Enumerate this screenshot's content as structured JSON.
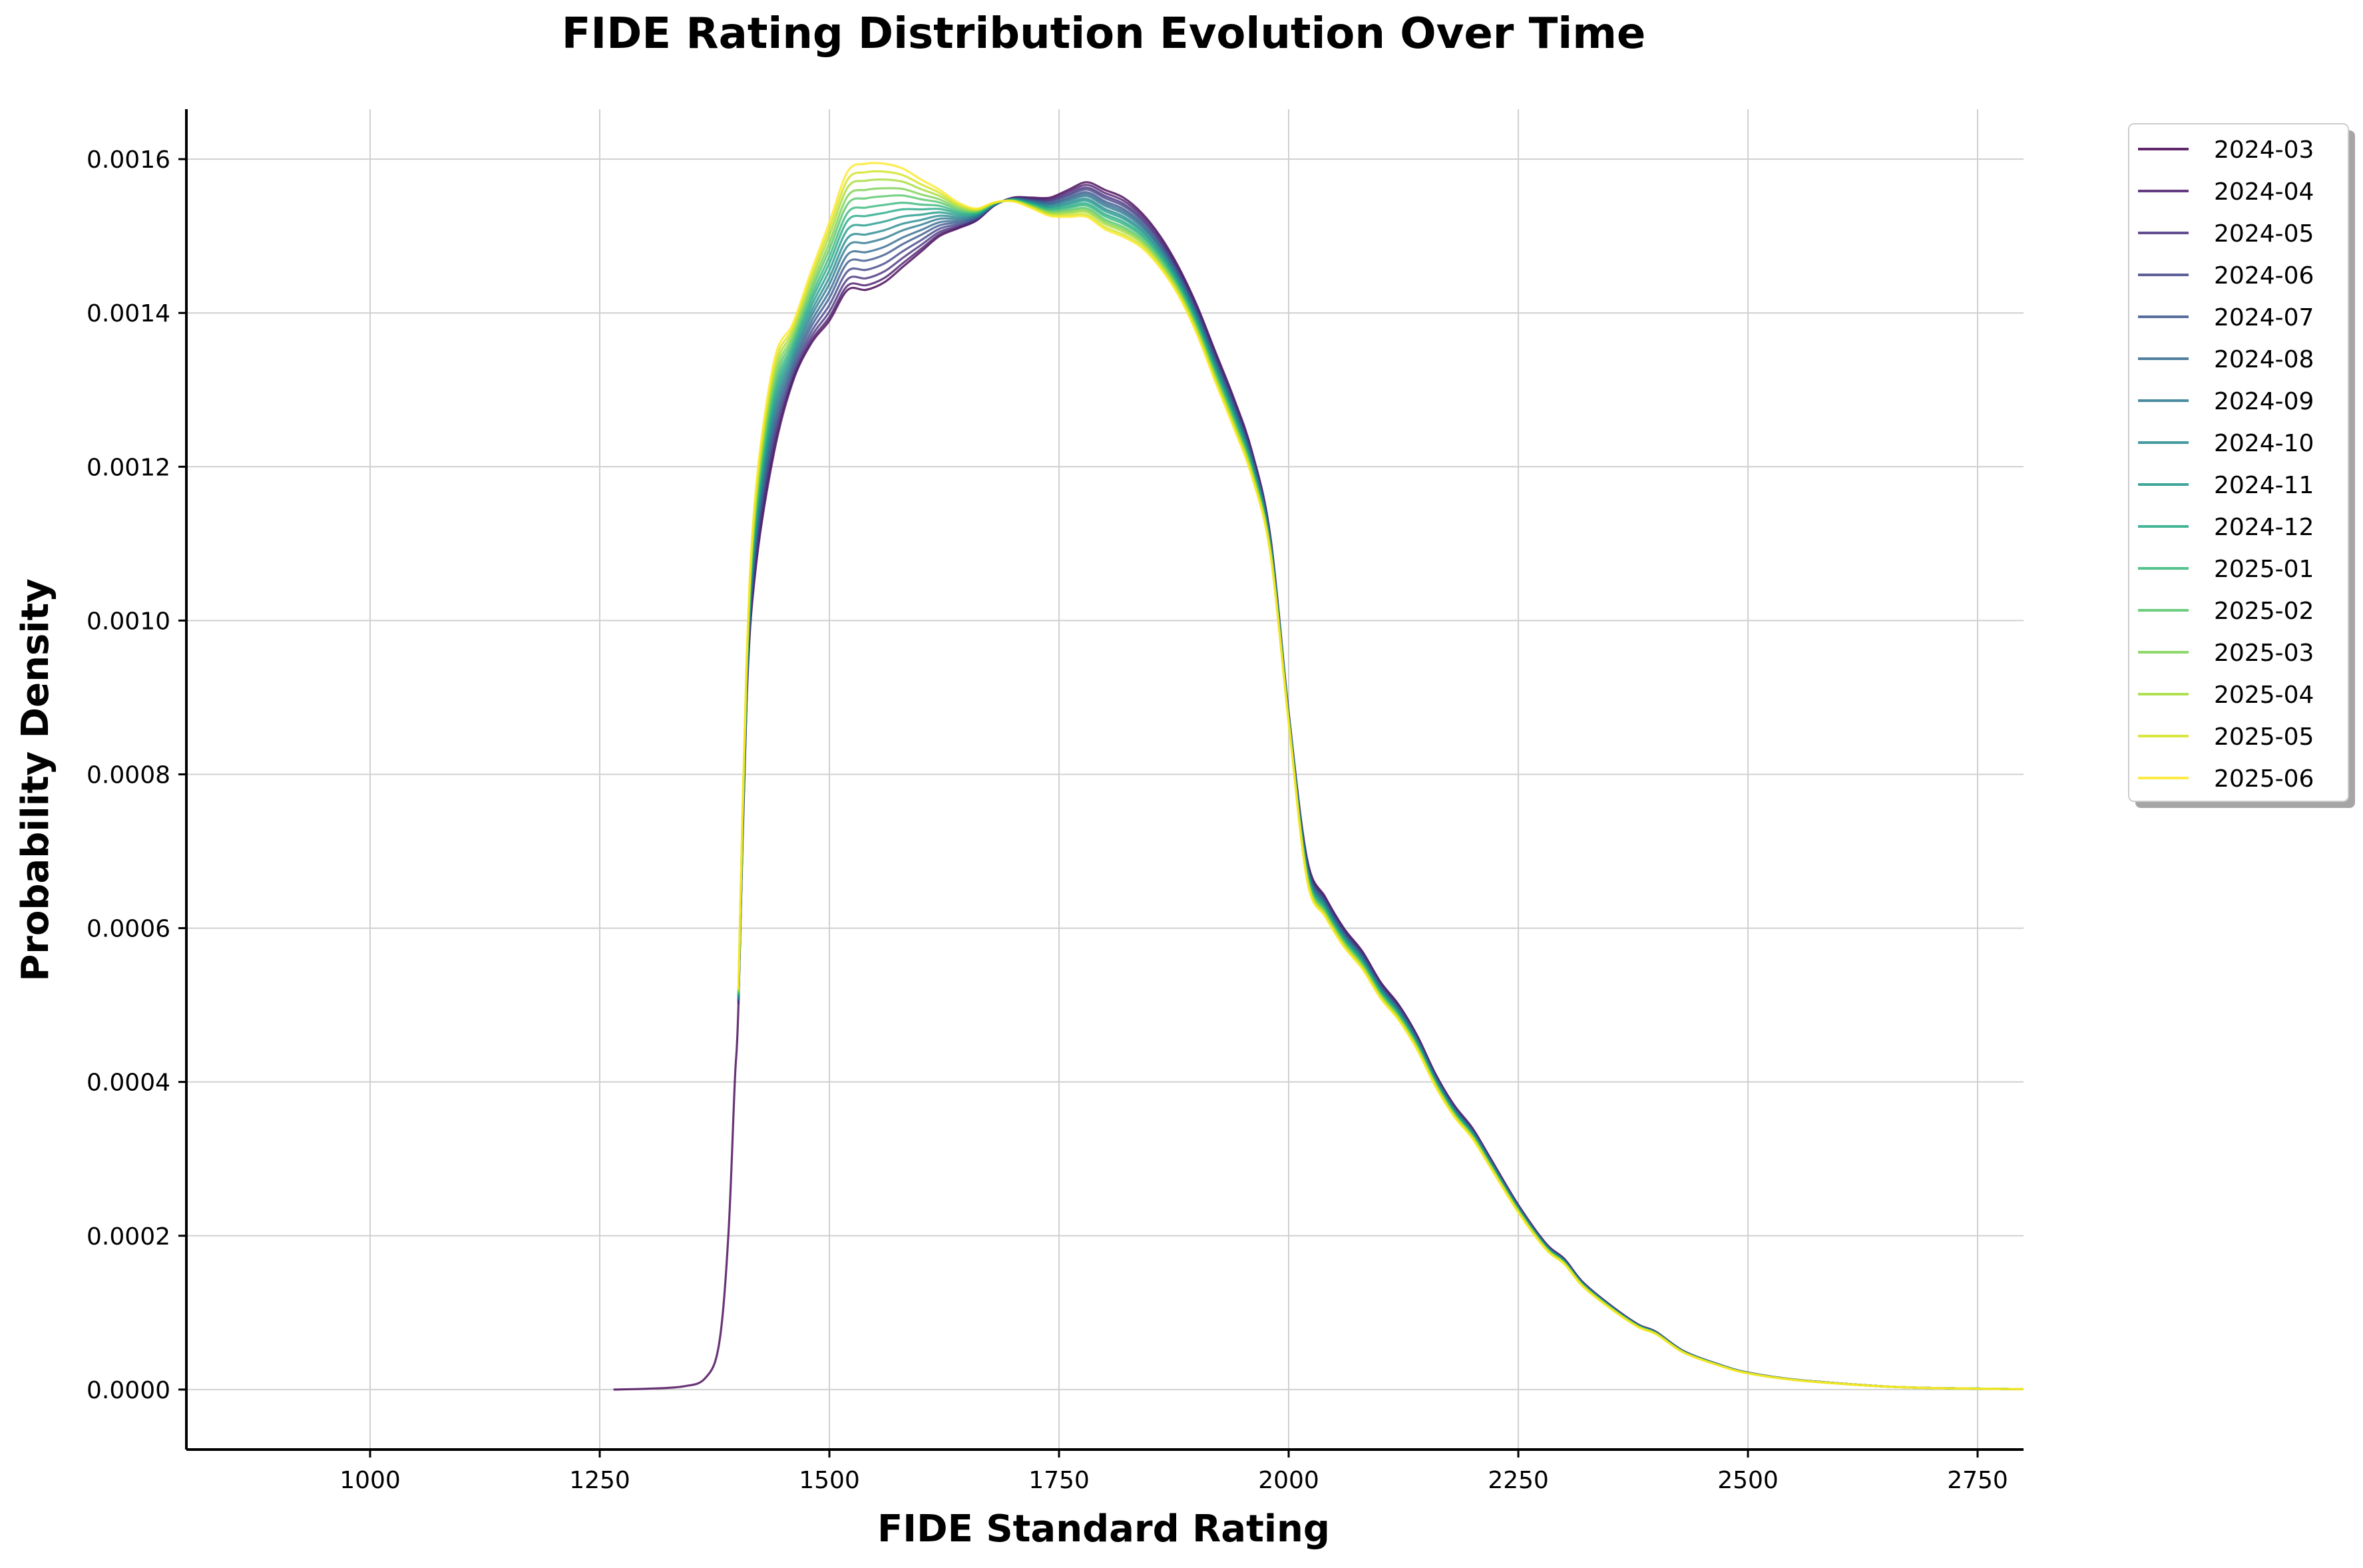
{
  "chart_data": {
    "type": "line",
    "title": "FIDE Rating Distribution Evolution Over Time",
    "xlabel": "FIDE Standard Rating",
    "ylabel": "Probability Density",
    "xlim": [
      800,
      2800
    ],
    "ylim": [
      -7.8e-05,
      0.001665
    ],
    "xticks": [
      1000,
      1250,
      1500,
      1750,
      2000,
      2250,
      2500,
      2750
    ],
    "yticks": [
      0.0,
      0.0002,
      0.0004,
      0.0006,
      0.0008,
      0.001,
      0.0012,
      0.0014,
      0.0016
    ],
    "xtick_labels": [
      "1000",
      "1250",
      "1500",
      "1750",
      "2000",
      "2250",
      "2500",
      "2750"
    ],
    "ytick_labels": [
      "0.0000",
      "0.0002",
      "0.0004",
      "0.0006",
      "0.0008",
      "0.0010",
      "0.0012",
      "0.0014",
      "0.0016"
    ],
    "grid": true,
    "legend_position": "outside-top-right",
    "colormap": "viridis",
    "series": [
      {
        "name": "2024-03",
        "color": "#440154",
        "points": [
          [
            1265,
            0
          ],
          [
            1300,
            1e-06
          ],
          [
            1340,
            4e-06
          ],
          [
            1365,
            1.5e-05
          ],
          [
            1380,
            6e-05
          ],
          [
            1390,
            0.0002
          ],
          [
            1397,
            0.0004
          ],
          [
            1401,
            0.0005
          ],
          [
            1410,
            0.0009
          ],
          [
            1420,
            0.00107
          ],
          [
            1440,
            0.00122
          ],
          [
            1460,
            0.00131
          ],
          [
            1480,
            0.00136
          ],
          [
            1500,
            0.00139
          ],
          [
            1520,
            0.00143
          ],
          [
            1540,
            0.00143
          ],
          [
            1560,
            0.00144
          ],
          [
            1580,
            0.00146
          ],
          [
            1600,
            0.00148
          ],
          [
            1620,
            0.0015
          ],
          [
            1640,
            0.00151
          ],
          [
            1660,
            0.00152
          ],
          [
            1680,
            0.00154
          ],
          [
            1700,
            0.00155
          ],
          [
            1720,
            0.00155
          ],
          [
            1740,
            0.00155
          ],
          [
            1760,
            0.00156
          ],
          [
            1780,
            0.00157
          ],
          [
            1800,
            0.00156
          ],
          [
            1820,
            0.00155
          ],
          [
            1840,
            0.00153
          ],
          [
            1860,
            0.0015
          ],
          [
            1880,
            0.00146
          ],
          [
            1900,
            0.00141
          ],
          [
            1920,
            0.00135
          ],
          [
            1940,
            0.00129
          ],
          [
            1960,
            0.00122
          ],
          [
            1980,
            0.00111
          ],
          [
            2000,
            0.00088
          ],
          [
            2020,
            0.00069
          ],
          [
            2040,
            0.00064
          ],
          [
            2060,
            0.0006
          ],
          [
            2080,
            0.00057
          ],
          [
            2100,
            0.00053
          ],
          [
            2120,
            0.0005
          ],
          [
            2140,
            0.00046
          ],
          [
            2160,
            0.00041
          ],
          [
            2180,
            0.00037
          ],
          [
            2200,
            0.00034
          ],
          [
            2220,
            0.0003
          ],
          [
            2250,
            0.00024
          ],
          [
            2280,
            0.00019
          ],
          [
            2300,
            0.00017
          ],
          [
            2320,
            0.00014
          ],
          [
            2350,
            0.00011
          ],
          [
            2380,
            8.5e-05
          ],
          [
            2400,
            7.5e-05
          ],
          [
            2430,
            5e-05
          ],
          [
            2470,
            3.2e-05
          ],
          [
            2500,
            2.2e-05
          ],
          [
            2550,
            1.3e-05
          ],
          [
            2600,
            8e-06
          ],
          [
            2650,
            4e-06
          ],
          [
            2700,
            2e-06
          ],
          [
            2800,
            5e-07
          ]
        ]
      },
      {
        "name": "2024-04",
        "color": "#481a6c",
        "peak": 0.001442,
        "high": 0.001562
      },
      {
        "name": "2024-05",
        "color": "#472f7d",
        "peak": 0.001451,
        "high": 0.001558
      },
      {
        "name": "2024-06",
        "color": "#414487",
        "peak": 0.001462,
        "high": 0.001555
      },
      {
        "name": "2024-07",
        "color": "#39568c",
        "peak": 0.001474,
        "high": 0.001551
      },
      {
        "name": "2024-08",
        "color": "#31688e",
        "peak": 0.001485,
        "high": 0.001548
      },
      {
        "name": "2024-09",
        "color": "#2a788e",
        "peak": 0.001497,
        "high": 0.001545
      },
      {
        "name": "2024-10",
        "color": "#23888e",
        "peak": 0.001508,
        "high": 0.001541
      },
      {
        "name": "2024-11",
        "color": "#1f988b",
        "peak": 0.00152,
        "high": 0.001538
      },
      {
        "name": "2024-12",
        "color": "#22a884",
        "peak": 0.001532,
        "high": 0.001534
      },
      {
        "name": "2025-01",
        "color": "#35b779",
        "peak": 0.001543,
        "high": 0.001531
      },
      {
        "name": "2025-02",
        "color": "#54c568",
        "peak": 0.001555,
        "high": 0.001527
      },
      {
        "name": "2025-03",
        "color": "#7ad151",
        "peak": 0.001566,
        "high": 0.001524
      },
      {
        "name": "2025-04",
        "color": "#a5db36",
        "peak": 0.001578,
        "high": 0.001521
      },
      {
        "name": "2025-05",
        "color": "#d2e21b",
        "peak": 0.001589,
        "high": 0.001517
      },
      {
        "name": "2025-06",
        "color": "#fde725",
        "peak": 0.0016,
        "high": 0.001514
      }
    ]
  }
}
